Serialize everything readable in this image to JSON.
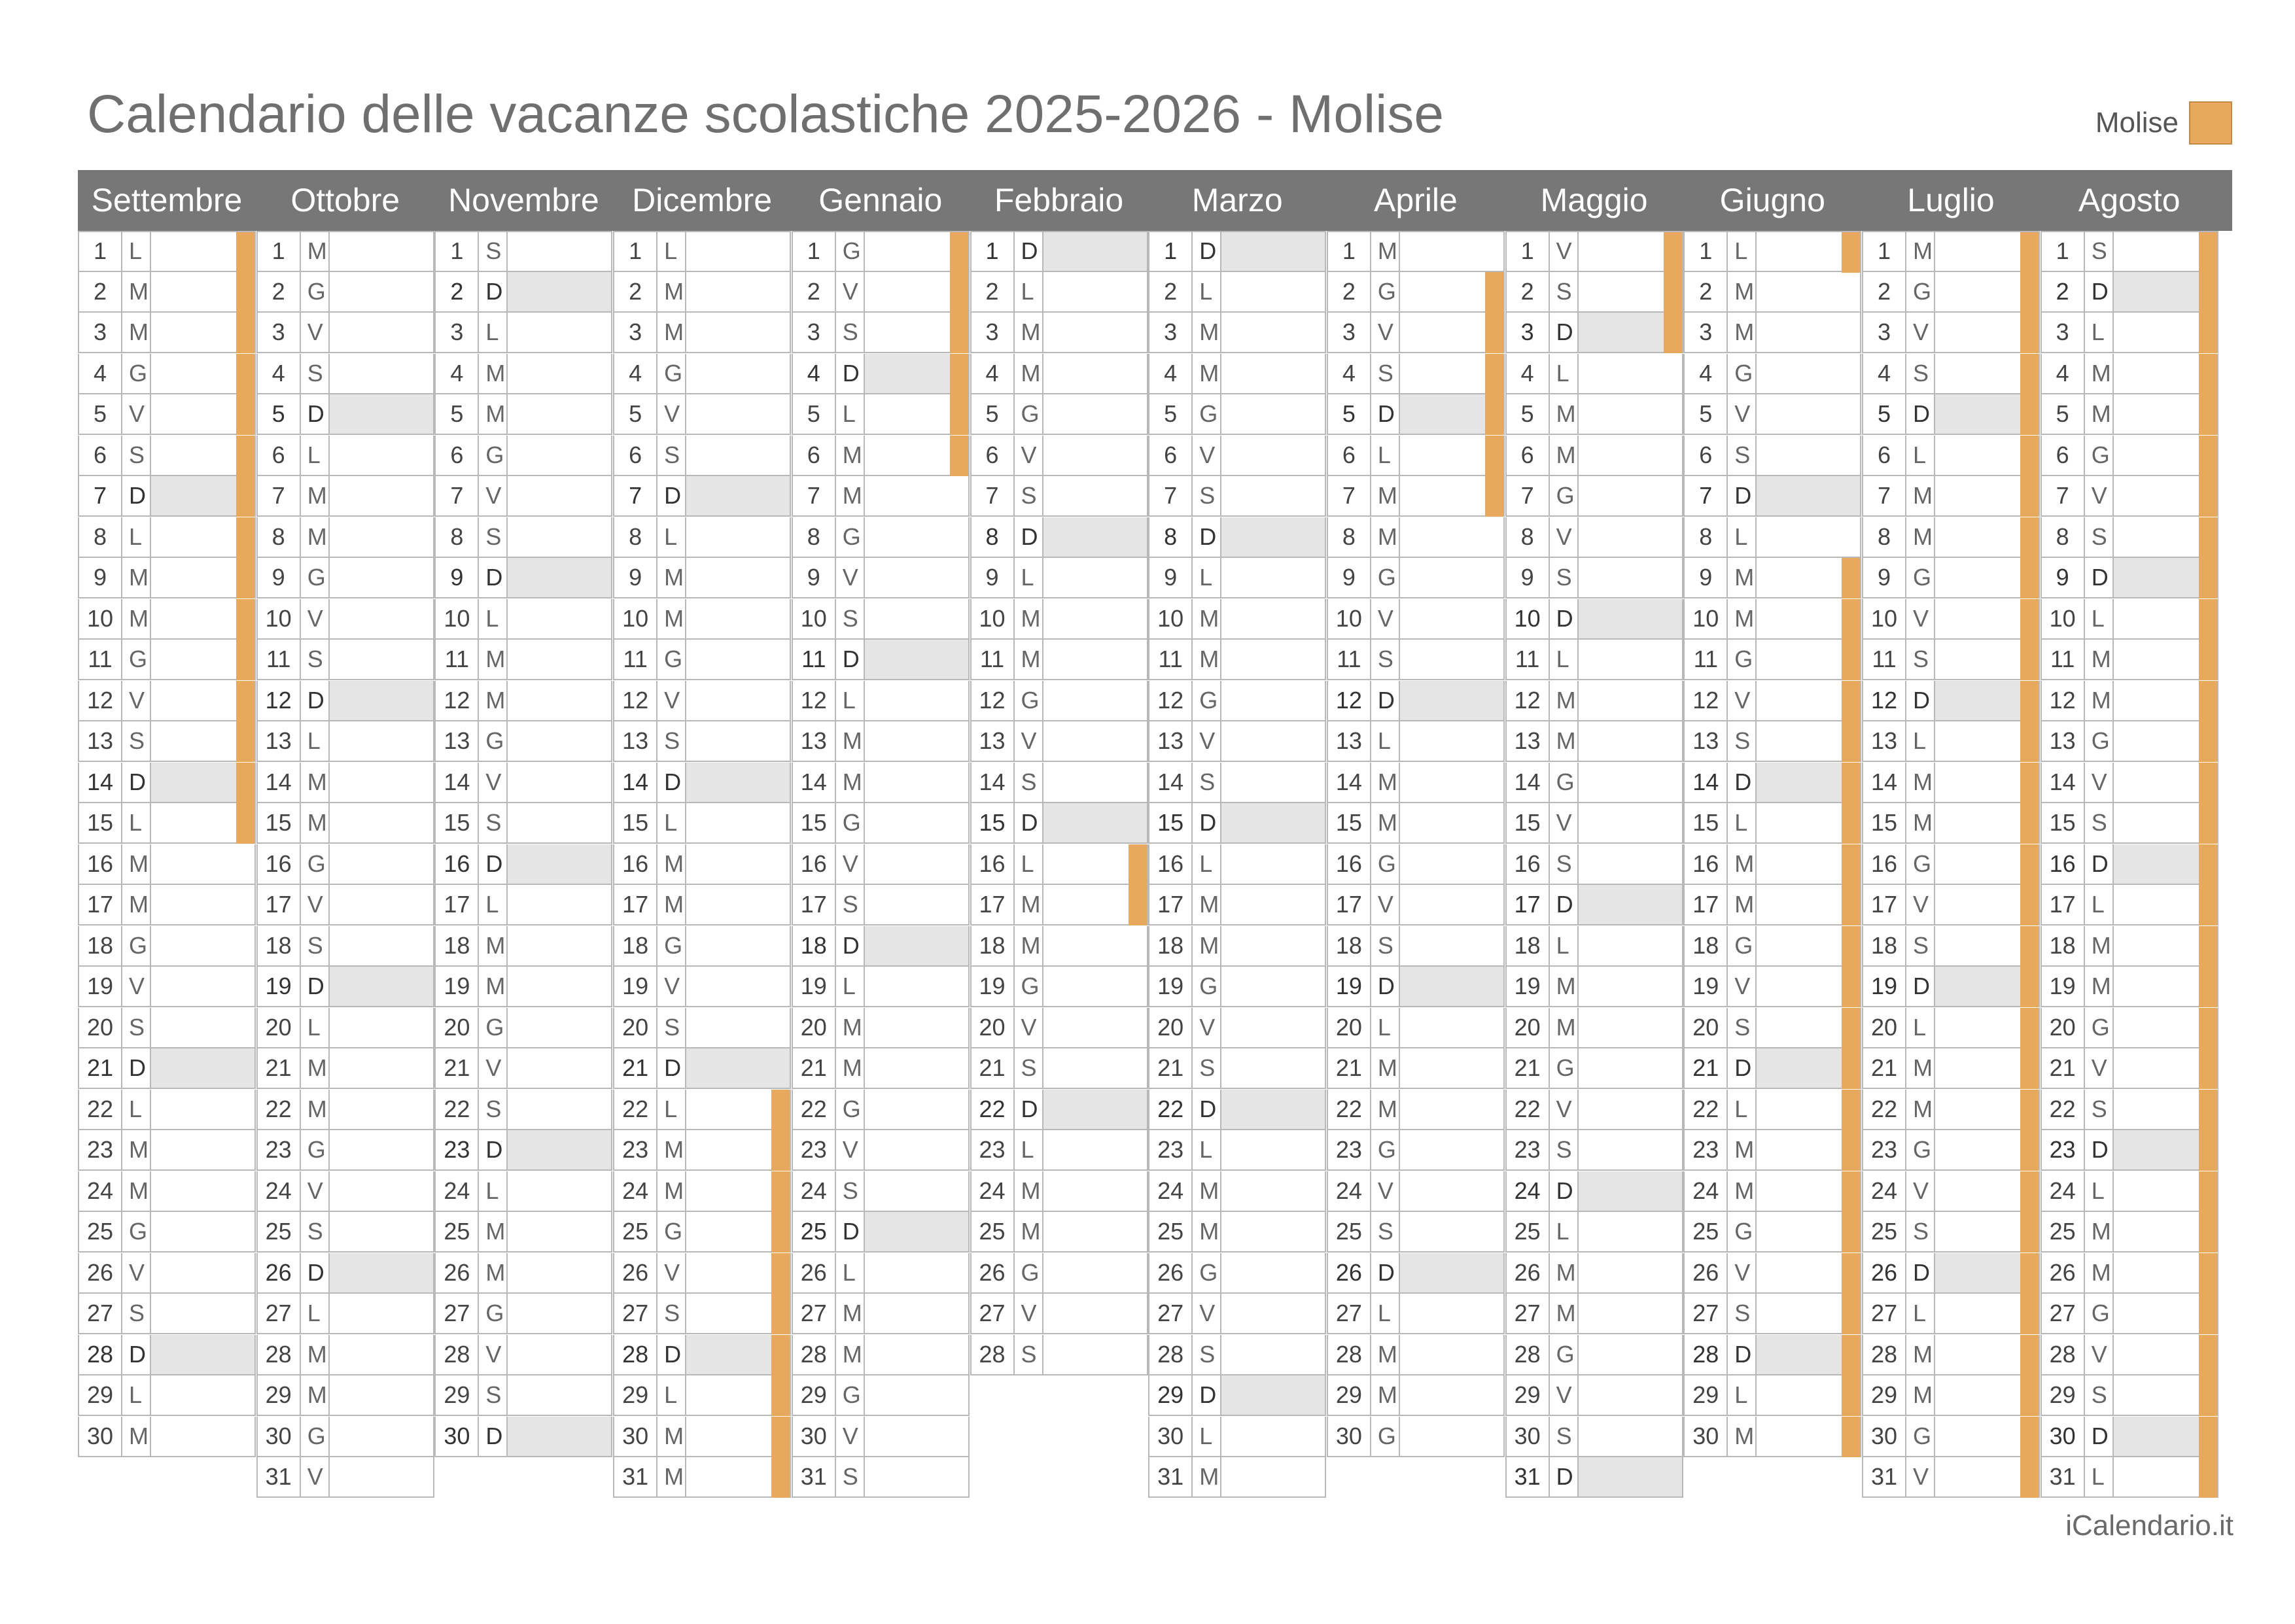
{
  "title": "Calendario delle vacanze scolastiche 2025-2026 - Molise",
  "legend": {
    "label": "Molise",
    "color": "#e8a95f"
  },
  "footer": "iCalendario.it",
  "colors": {
    "header": "#777777",
    "sunday": "#e5e5e5",
    "holiday": "#e8a95f"
  },
  "months": [
    {
      "name": "Settembre",
      "days": 30,
      "start": 0,
      "holidays": [
        1,
        2,
        3,
        4,
        5,
        6,
        7,
        8,
        9,
        10,
        11,
        12,
        13,
        14,
        15
      ]
    },
    {
      "name": "Ottobre",
      "days": 31,
      "start": 2,
      "holidays": []
    },
    {
      "name": "Novembre",
      "days": 30,
      "start": 5,
      "holidays": []
    },
    {
      "name": "Dicembre",
      "days": 31,
      "start": 0,
      "holidays": [
        22,
        23,
        24,
        25,
        26,
        27,
        28,
        29,
        30,
        31
      ]
    },
    {
      "name": "Gennaio",
      "days": 31,
      "start": 3,
      "holidays": [
        1,
        2,
        3,
        4,
        5,
        6
      ]
    },
    {
      "name": "Febbraio",
      "days": 28,
      "start": 6,
      "holidays": [
        16,
        17
      ]
    },
    {
      "name": "Marzo",
      "days": 31,
      "start": 6,
      "holidays": []
    },
    {
      "name": "Aprile",
      "days": 30,
      "start": 2,
      "holidays": [
        2,
        3,
        4,
        5,
        6,
        7
      ]
    },
    {
      "name": "Maggio",
      "days": 31,
      "start": 4,
      "holidays": [
        1,
        2,
        3
      ]
    },
    {
      "name": "Giugno",
      "days": 30,
      "start": 0,
      "holidays": [
        1,
        9,
        10,
        11,
        12,
        13,
        14,
        15,
        16,
        17,
        18,
        19,
        20,
        21,
        22,
        23,
        24,
        25,
        26,
        27,
        28,
        29,
        30
      ]
    },
    {
      "name": "Luglio",
      "days": 31,
      "start": 2,
      "holidays": [
        1,
        2,
        3,
        4,
        5,
        6,
        7,
        8,
        9,
        10,
        11,
        12,
        13,
        14,
        15,
        16,
        17,
        18,
        19,
        20,
        21,
        22,
        23,
        24,
        25,
        26,
        27,
        28,
        29,
        30,
        31
      ]
    },
    {
      "name": "Agosto",
      "days": 31,
      "start": 5,
      "holidays": [
        1,
        2,
        3,
        4,
        5,
        6,
        7,
        8,
        9,
        10,
        11,
        12,
        13,
        14,
        15,
        16,
        17,
        18,
        19,
        20,
        21,
        22,
        23,
        24,
        25,
        26,
        27,
        28,
        29,
        30,
        31
      ]
    }
  ],
  "weekday_letters": [
    "L",
    "M",
    "M",
    "G",
    "V",
    "S",
    "D"
  ]
}
